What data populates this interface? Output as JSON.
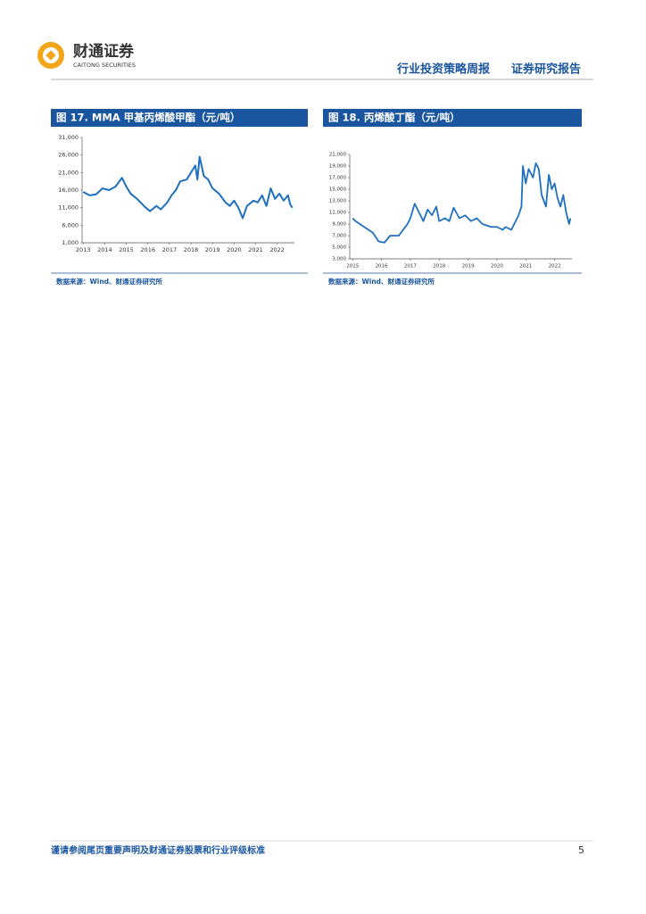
{
  "header": {
    "logo_cn": "财通证券",
    "logo_en": "CAITONG SECURITIES",
    "report_type": "行业投资策略周报",
    "report_class": "证券研究报告"
  },
  "chart_data": [
    {
      "type": "line",
      "title": "图 17. MMA 甲基丙烯酸甲酯（元/吨）",
      "source": "数据来源：Wind、财通证券研究所",
      "x": [
        2013.0,
        2013.3,
        2013.6,
        2013.9,
        2014.2,
        2014.5,
        2014.8,
        2015.0,
        2015.2,
        2015.5,
        2015.9,
        2016.1,
        2016.4,
        2016.6,
        2016.9,
        2017.1,
        2017.3,
        2017.5,
        2017.8,
        2018.0,
        2018.2,
        2018.3,
        2018.4,
        2018.6,
        2018.8,
        2019.0,
        2019.3,
        2019.6,
        2019.8,
        2020.0,
        2020.2,
        2020.4,
        2020.6,
        2020.9,
        2021.1,
        2021.3,
        2021.5,
        2021.7,
        2021.9,
        2022.1,
        2022.3,
        2022.5,
        2022.6,
        2022.7
      ],
      "series": [
        {
          "name": "MMA",
          "color": "#1f6fc0",
          "values": [
            15500,
            14500,
            14800,
            16500,
            16000,
            17000,
            19500,
            17000,
            15000,
            13500,
            11000,
            10000,
            11500,
            10500,
            12500,
            14500,
            16000,
            18500,
            19000,
            21000,
            23000,
            19000,
            25500,
            20000,
            19000,
            16500,
            15000,
            12500,
            11500,
            13000,
            11000,
            8000,
            11500,
            13000,
            12500,
            14500,
            11500,
            16500,
            13500,
            15000,
            13000,
            14500,
            12000,
            11000
          ]
        }
      ],
      "xlim": [
        2012.95,
        2022.8
      ],
      "xticks": [
        2013,
        2014,
        2015,
        2016,
        2017,
        2018,
        2019,
        2020,
        2021,
        2022
      ],
      "ylim": [
        1000,
        31000
      ],
      "yticks": [
        {
          "value": 1000,
          "label": "1,000"
        },
        {
          "value": 6000,
          "label": "6,000"
        },
        {
          "value": 11000,
          "label": "11,000"
        },
        {
          "value": 16000,
          "label": "16,000"
        },
        {
          "value": 21000,
          "label": "21,000"
        },
        {
          "value": 26000,
          "label": "26,000"
        },
        {
          "value": 31000,
          "label": "31,000"
        }
      ]
    },
    {
      "type": "line",
      "title": "图 18. 丙烯酸丁酯（元/吨）",
      "source": "数据来源：Wind、财通证券研究所",
      "x": [
        2015.0,
        2015.1,
        2015.4,
        2015.7,
        2015.9,
        2016.1,
        2016.3,
        2016.6,
        2016.9,
        2017.0,
        2017.15,
        2017.3,
        2017.45,
        2017.6,
        2017.75,
        2017.9,
        2018.0,
        2018.2,
        2018.35,
        2018.5,
        2018.7,
        2018.9,
        2019.1,
        2019.3,
        2019.5,
        2019.8,
        2020.0,
        2020.2,
        2020.3,
        2020.5,
        2020.6,
        2020.75,
        2020.85,
        2020.9,
        2021.0,
        2021.1,
        2021.25,
        2021.35,
        2021.45,
        2021.55,
        2021.7,
        2021.8,
        2021.9,
        2022.0,
        2022.1,
        2022.2,
        2022.3,
        2022.4,
        2022.5,
        2022.55
      ],
      "series": [
        {
          "name": "丙烯酸丁酯",
          "color": "#1f6fc0",
          "values": [
            10000,
            9500,
            8500,
            7500,
            6000,
            5800,
            7000,
            7000,
            9000,
            10000,
            12500,
            11000,
            9500,
            11500,
            10500,
            12000,
            9500,
            10000,
            9500,
            11800,
            10000,
            10500,
            9500,
            10000,
            9000,
            8500,
            8500,
            8000,
            8500,
            8000,
            9000,
            10500,
            12000,
            19000,
            16000,
            18500,
            17000,
            19500,
            18500,
            14000,
            12000,
            17500,
            15000,
            16000,
            13500,
            12000,
            14000,
            11000,
            9000,
            10000
          ]
        }
      ],
      "xlim": [
        2014.9,
        2022.6
      ],
      "xticks": [
        2015,
        2016,
        2017,
        2018,
        2019,
        2020,
        2021,
        2022
      ],
      "ylim": [
        3000,
        21000
      ],
      "yticks": [
        {
          "value": 3000,
          "label": "3,000"
        },
        {
          "value": 5000,
          "label": "5,000"
        },
        {
          "value": 7000,
          "label": "7,000"
        },
        {
          "value": 9000,
          "label": "9,000"
        },
        {
          "value": 11000,
          "label": "11,000"
        },
        {
          "value": 13000,
          "label": "13,000"
        },
        {
          "value": 15000,
          "label": "15,000"
        },
        {
          "value": 17000,
          "label": "17,000"
        },
        {
          "value": 19000,
          "label": "19,000"
        },
        {
          "value": 21000,
          "label": "21,000"
        }
      ]
    }
  ],
  "footer": {
    "disclaimer": "谨请参阅尾页重要声明及财通证券股票和行业评级标准",
    "page": "5"
  }
}
